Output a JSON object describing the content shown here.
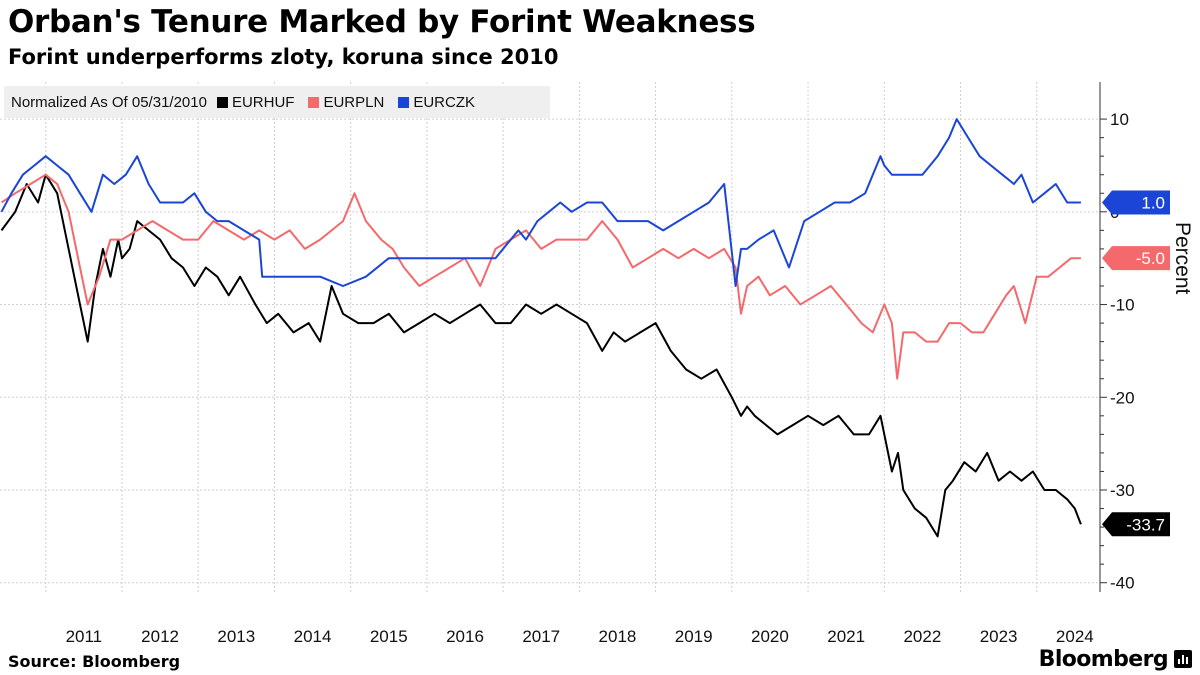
{
  "title": "Orban's Tenure Marked by Forint Weakness",
  "subtitle": "Forint underperforms zloty, koruna since 2010",
  "source": "Source: Bloomberg",
  "brand": "Bloomberg",
  "legend": {
    "title": "Normalized As Of 05/31/2010",
    "items": [
      {
        "label": "EURHUF",
        "color": "#000000"
      },
      {
        "label": "EURPLN",
        "color": "#f4696b"
      },
      {
        "label": "EURCZK",
        "color": "#1a45d6"
      }
    ]
  },
  "chart_data": {
    "type": "line",
    "title": "Orban's Tenure Marked by Forint Weakness",
    "subtitle": "Forint underperforms zloty, koruna since 2010",
    "ylabel": "Percent",
    "xlabel": "",
    "ylim": [
      -41,
      14
    ],
    "xlim": [
      2010.4,
      2024.83
    ],
    "yticks": [
      10,
      0,
      -10,
      -20,
      -30,
      -40
    ],
    "ytick_labels": [
      "10",
      "0",
      "-10",
      "-20",
      "-30",
      "-40"
    ],
    "year_labels": [
      "2011",
      "2012",
      "2013",
      "2014",
      "2015",
      "2016",
      "2017",
      "2018",
      "2019",
      "2020",
      "2021",
      "2022",
      "2023",
      "2024"
    ],
    "grid": true,
    "legend_position": "top-left",
    "series": [
      {
        "name": "EURHUF",
        "color": "#000000",
        "last_value": -33.7,
        "last_label": "-33.7",
        "x": [
          2010.42,
          2010.6,
          2010.75,
          2010.9,
          2011.0,
          2011.15,
          2011.3,
          2011.45,
          2011.55,
          2011.65,
          2011.75,
          2011.85,
          2011.95,
          2012.0,
          2012.1,
          2012.2,
          2012.35,
          2012.5,
          2012.65,
          2012.8,
          2012.95,
          2013.1,
          2013.25,
          2013.4,
          2013.55,
          2013.75,
          2013.9,
          2014.05,
          2014.25,
          2014.45,
          2014.6,
          2014.75,
          2014.9,
          2015.1,
          2015.3,
          2015.5,
          2015.7,
          2015.9,
          2016.1,
          2016.3,
          2016.5,
          2016.7,
          2016.9,
          2017.1,
          2017.3,
          2017.5,
          2017.7,
          2017.9,
          2018.1,
          2018.3,
          2018.45,
          2018.6,
          2018.8,
          2019.0,
          2019.2,
          2019.4,
          2019.6,
          2019.8,
          2020.0,
          2020.12,
          2020.2,
          2020.3,
          2020.45,
          2020.6,
          2020.8,
          2021.0,
          2021.2,
          2021.4,
          2021.6,
          2021.8,
          2021.95,
          2022.1,
          2022.18,
          2022.25,
          2022.4,
          2022.55,
          2022.7,
          2022.8,
          2022.9,
          2023.05,
          2023.2,
          2023.35,
          2023.5,
          2023.65,
          2023.8,
          2023.95,
          2024.1,
          2024.25,
          2024.4,
          2024.5,
          2024.58
        ],
        "y": [
          -2,
          0,
          3,
          1,
          4,
          2,
          -4,
          -10,
          -14,
          -8,
          -4,
          -7,
          -3,
          -5,
          -4,
          -1,
          -2,
          -3,
          -5,
          -6,
          -8,
          -6,
          -7,
          -9,
          -7,
          -10,
          -12,
          -11,
          -13,
          -12,
          -14,
          -8,
          -11,
          -12,
          -12,
          -11,
          -13,
          -12,
          -11,
          -12,
          -11,
          -10,
          -12,
          -12,
          -10,
          -11,
          -10,
          -11,
          -12,
          -15,
          -13,
          -14,
          -13,
          -12,
          -15,
          -17,
          -18,
          -17,
          -20,
          -22,
          -21,
          -22,
          -23,
          -24,
          -23,
          -22,
          -23,
          -22,
          -24,
          -24,
          -22,
          -28,
          -26,
          -30,
          -32,
          -33,
          -35,
          -30,
          -29,
          -27,
          -28,
          -26,
          -29,
          -28,
          -29,
          -28,
          -30,
          -30,
          -31,
          -32,
          -33.7
        ]
      },
      {
        "name": "EURPLN",
        "color": "#f4696b",
        "last_value": -5.0,
        "last_label": "-5.0",
        "x": [
          2010.42,
          2010.6,
          2010.8,
          2011.0,
          2011.15,
          2011.3,
          2011.45,
          2011.55,
          2011.7,
          2011.85,
          2012.0,
          2012.2,
          2012.4,
          2012.6,
          2012.8,
          2013.0,
          2013.2,
          2013.4,
          2013.6,
          2013.8,
          2014.0,
          2014.2,
          2014.4,
          2014.6,
          2014.75,
          2014.9,
          2015.05,
          2015.2,
          2015.4,
          2015.55,
          2015.7,
          2015.9,
          2016.1,
          2016.3,
          2016.5,
          2016.7,
          2016.9,
          2017.1,
          2017.3,
          2017.5,
          2017.7,
          2017.9,
          2018.1,
          2018.3,
          2018.5,
          2018.7,
          2018.9,
          2019.1,
          2019.3,
          2019.5,
          2019.7,
          2019.9,
          2020.05,
          2020.12,
          2020.2,
          2020.35,
          2020.5,
          2020.7,
          2020.9,
          2021.1,
          2021.3,
          2021.5,
          2021.7,
          2021.85,
          2022.0,
          2022.1,
          2022.17,
          2022.25,
          2022.4,
          2022.55,
          2022.7,
          2022.85,
          2023.0,
          2023.15,
          2023.3,
          2023.45,
          2023.6,
          2023.7,
          2023.85,
          2024.0,
          2024.15,
          2024.3,
          2024.45,
          2024.58
        ],
        "y": [
          1,
          2,
          3,
          4,
          3,
          0,
          -6,
          -10,
          -7,
          -3,
          -3,
          -2,
          -1,
          -2,
          -3,
          -3,
          -1,
          -2,
          -3,
          -2,
          -3,
          -2,
          -4,
          -3,
          -2,
          -1,
          2,
          -1,
          -3,
          -4,
          -6,
          -8,
          -7,
          -6,
          -5,
          -8,
          -4,
          -3,
          -2,
          -4,
          -3,
          -3,
          -3,
          -1,
          -3,
          -6,
          -5,
          -4,
          -5,
          -4,
          -5,
          -4,
          -6,
          -11,
          -8,
          -7,
          -9,
          -8,
          -10,
          -9,
          -8,
          -10,
          -12,
          -13,
          -10,
          -12,
          -18,
          -13,
          -13,
          -14,
          -14,
          -12,
          -12,
          -13,
          -13,
          -11,
          -9,
          -8,
          -12,
          -7,
          -7,
          -6,
          -5,
          -5.0
        ]
      },
      {
        "name": "EURCZK",
        "color": "#1a45d6",
        "last_value": 1.0,
        "last_label": "1.0",
        "x": [
          2010.42,
          2010.55,
          2010.7,
          2010.85,
          2011.0,
          2011.15,
          2011.3,
          2011.45,
          2011.6,
          2011.75,
          2011.9,
          2012.05,
          2012.2,
          2012.35,
          2012.5,
          2012.65,
          2012.8,
          2012.95,
          2013.1,
          2013.25,
          2013.4,
          2013.6,
          2013.8,
          2013.84,
          2014.0,
          2014.3,
          2014.6,
          2014.9,
          2015.2,
          2015.5,
          2015.8,
          2016.1,
          2016.4,
          2016.7,
          2016.9,
          2017.0,
          2017.1,
          2017.2,
          2017.3,
          2017.45,
          2017.6,
          2017.75,
          2017.9,
          2018.1,
          2018.3,
          2018.5,
          2018.7,
          2018.9,
          2019.1,
          2019.3,
          2019.5,
          2019.7,
          2019.9,
          2020.05,
          2020.12,
          2020.2,
          2020.35,
          2020.55,
          2020.75,
          2020.95,
          2021.15,
          2021.35,
          2021.55,
          2021.75,
          2021.85,
          2021.95,
          2022.0,
          2022.1,
          2022.3,
          2022.5,
          2022.7,
          2022.85,
          2022.95,
          2023.1,
          2023.25,
          2023.4,
          2023.55,
          2023.7,
          2023.8,
          2023.95,
          2024.1,
          2024.25,
          2024.4,
          2024.5,
          2024.58
        ],
        "y": [
          0,
          2,
          4,
          5,
          6,
          5,
          4,
          2,
          0,
          4,
          3,
          4,
          6,
          3,
          1,
          1,
          1,
          2,
          0,
          -1,
          -1,
          -2,
          -3,
          -7,
          -7,
          -7,
          -7,
          -8,
          -7,
          -5,
          -5,
          -5,
          -5,
          -5,
          -5,
          -4,
          -3,
          -2,
          -3,
          -1,
          0,
          1,
          0,
          1,
          1,
          -1,
          -1,
          -1,
          -2,
          -1,
          0,
          1,
          3,
          -8,
          -4,
          -4,
          -3,
          -2,
          -6,
          -1,
          0,
          1,
          1,
          2,
          4,
          6,
          5,
          4,
          4,
          4,
          6,
          8,
          10,
          8,
          6,
          5,
          4,
          3,
          4,
          1,
          2,
          3,
          1,
          1,
          1.0
        ]
      }
    ]
  }
}
